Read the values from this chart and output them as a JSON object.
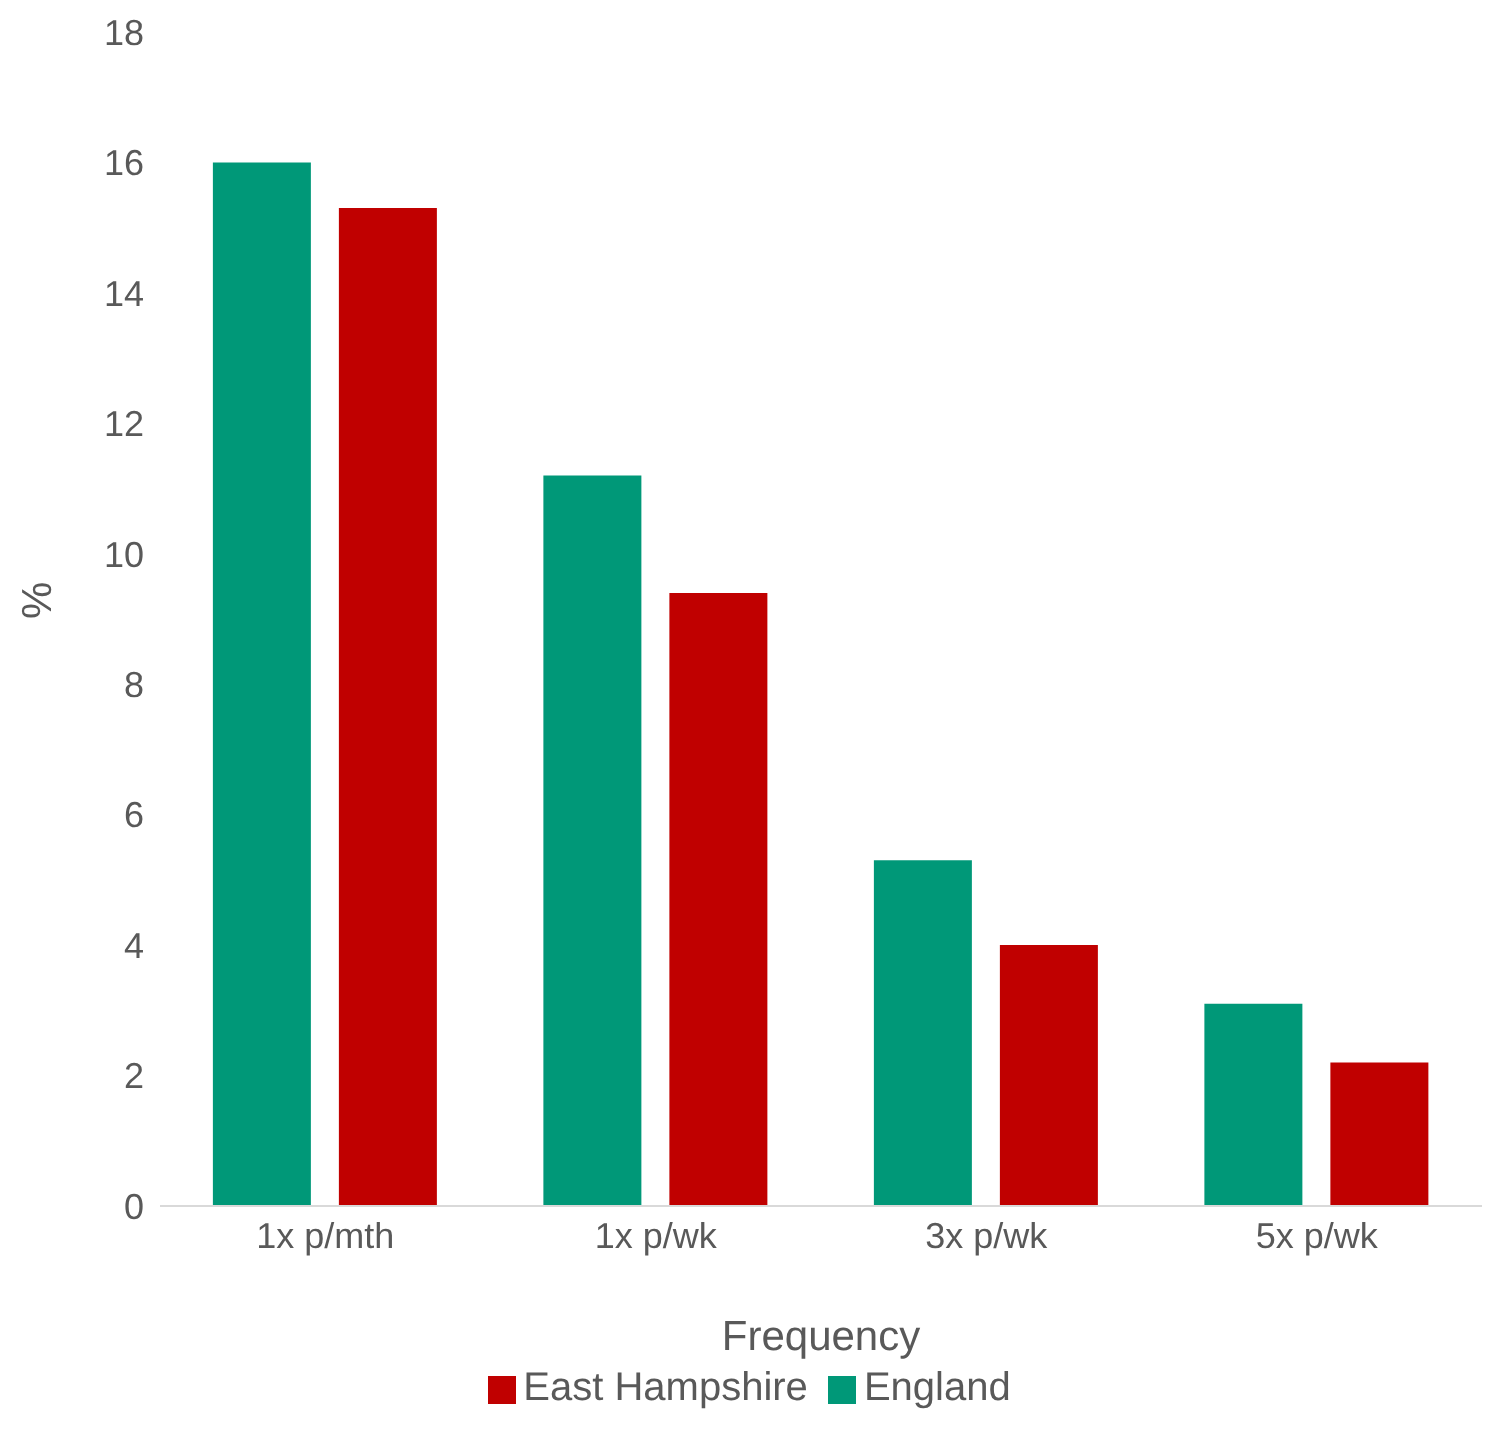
{
  "chart_data": {
    "type": "bar",
    "xlabel": "Frequency",
    "ylabel": "%",
    "categories": [
      "1x p/mth",
      "1x p/wk",
      "3x p/wk",
      "5x p/wk"
    ],
    "series": [
      {
        "name": "England",
        "color": "#009878",
        "values": [
          16.0,
          11.2,
          5.3,
          3.1
        ]
      },
      {
        "name": "East Hampshire",
        "color": "#c00000",
        "values": [
          15.3,
          9.4,
          4.0,
          2.2
        ]
      }
    ],
    "ylim": [
      0,
      18
    ],
    "yticks": [
      0,
      2,
      4,
      6,
      8,
      10,
      12,
      14,
      16,
      18
    ],
    "grid": false,
    "legend": "bottom"
  }
}
